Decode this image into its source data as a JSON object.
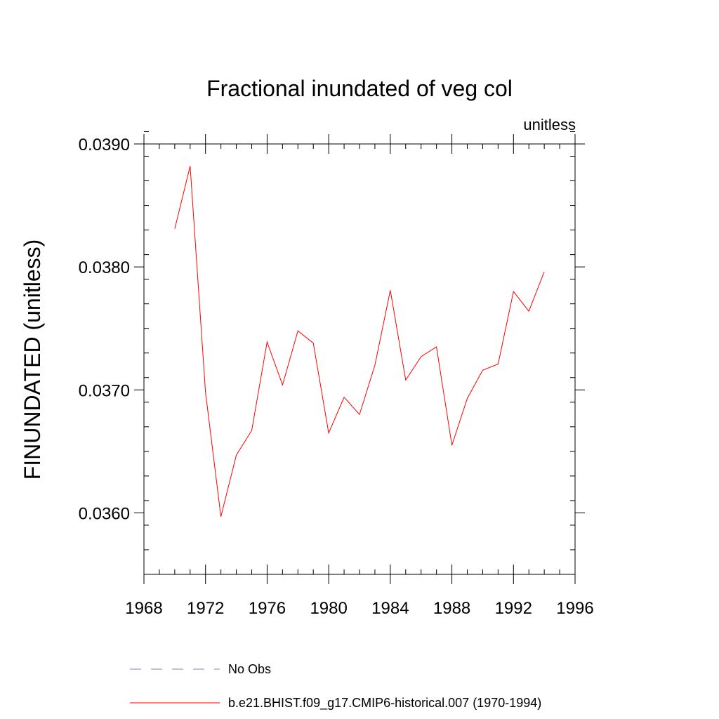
{
  "chart_data": {
    "type": "line",
    "title": "Fractional inundated of veg col",
    "units_label": "unitless",
    "ylabel": "FINUNDATED  (unitless)",
    "xlabel": "",
    "xlim": [
      1968,
      1996
    ],
    "ylim": [
      0.0355,
      0.039
    ],
    "x_ticks": [
      1968,
      1972,
      1976,
      1980,
      1984,
      1988,
      1992,
      1996
    ],
    "x_tick_labels": [
      "1968",
      "1972",
      "1976",
      "1980",
      "1984",
      "1988",
      "1992",
      "1996"
    ],
    "y_ticks": [
      0.036,
      0.037,
      0.038,
      0.039
    ],
    "y_tick_labels": [
      "0.0360",
      "0.0370",
      "0.0380",
      "0.0390"
    ],
    "grid": false,
    "series": [
      {
        "name": "b.e21.BHIST.f09_g17.CMIP6-historical.007 (1970-1994)",
        "color": "#ff0000",
        "style": "solid",
        "x": [
          1970,
          1971,
          1972,
          1973,
          1974,
          1975,
          1976,
          1977,
          1978,
          1979,
          1980,
          1981,
          1982,
          1983,
          1984,
          1985,
          1986,
          1987,
          1988,
          1989,
          1990,
          1991,
          1992,
          1993,
          1994
        ],
        "values": [
          0.03831,
          0.03882,
          0.03698,
          0.03597,
          0.03647,
          0.03667,
          0.03739,
          0.03704,
          0.03748,
          0.03738,
          0.03665,
          0.03694,
          0.0368,
          0.0372,
          0.03781,
          0.03708,
          0.03727,
          0.03735,
          0.03655,
          0.03693,
          0.03716,
          0.03721,
          0.0378,
          0.03764,
          0.03796
        ]
      }
    ],
    "legend": [
      {
        "label": "No Obs",
        "color": "#8080c0",
        "style": "dashed"
      },
      {
        "label": "b.e21.BHIST.f09_g17.CMIP6-historical.007 (1970-1994)",
        "color": "#ff0000",
        "style": "solid"
      }
    ]
  }
}
